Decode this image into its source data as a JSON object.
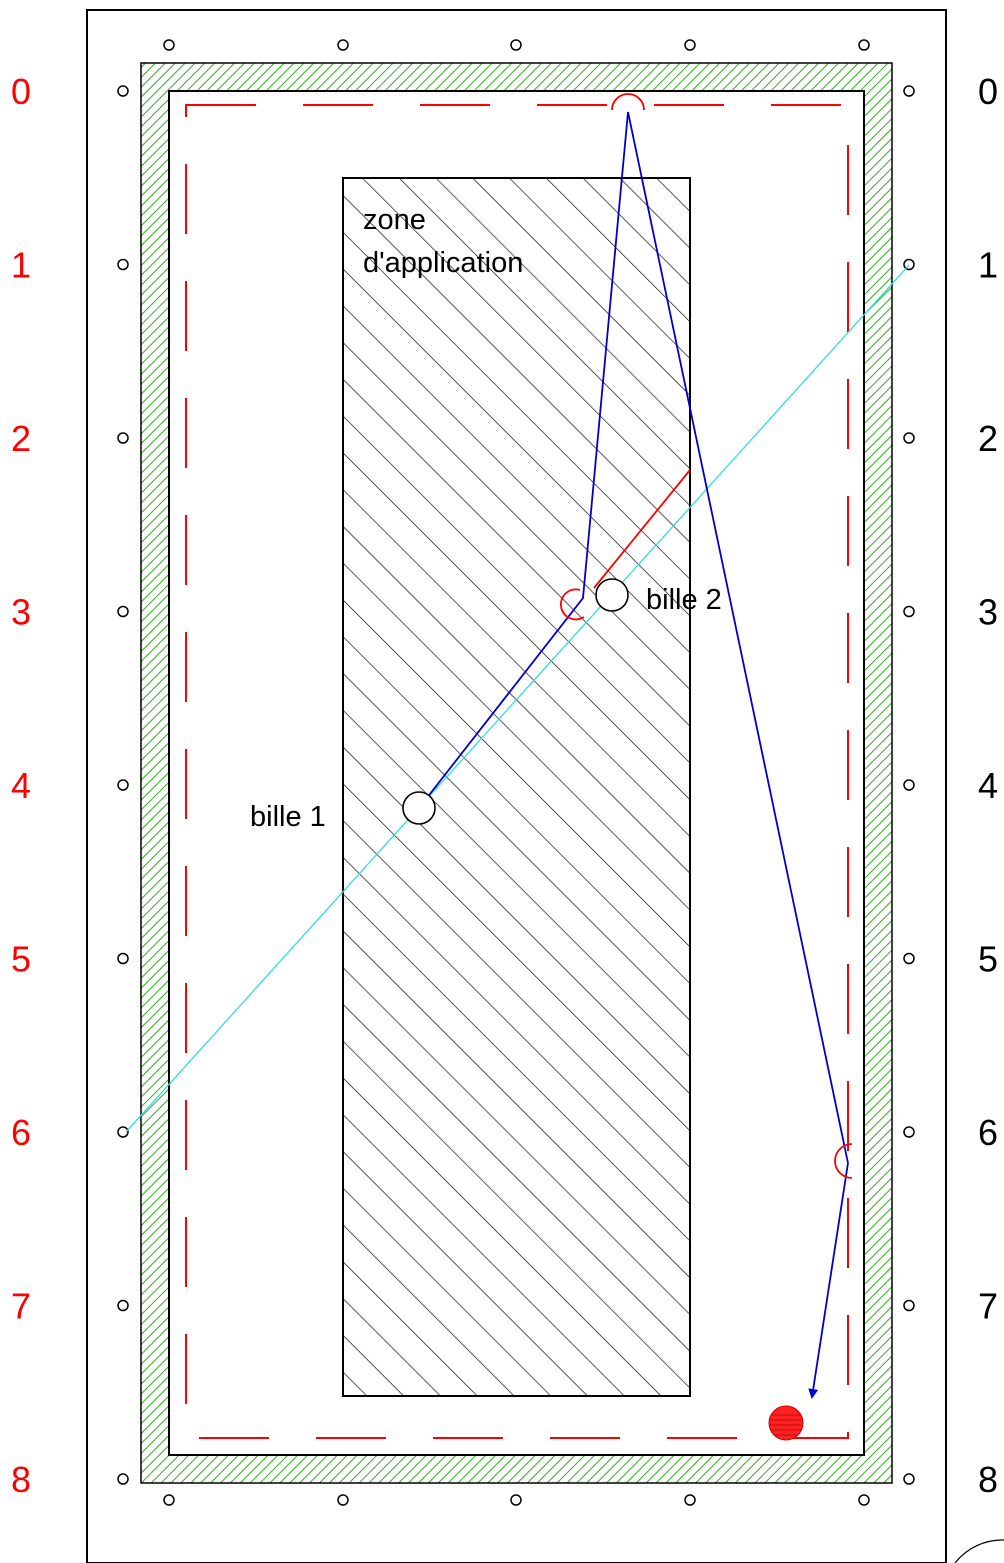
{
  "diagram": {
    "left_row_labels": [
      "0",
      "1",
      "2",
      "3",
      "4",
      "5",
      "6",
      "7",
      "8"
    ],
    "right_row_labels": [
      "0",
      "1",
      "2",
      "3",
      "4",
      "5",
      "6",
      "7",
      "8"
    ],
    "zone_label_line1": "zone",
    "zone_label_line2": "d'application",
    "ball1_label": "bille 1",
    "ball2_label": "bille 2",
    "colors": {
      "left_labels": "#ff0000",
      "right_labels": "#000000",
      "cushion": "#33aa22",
      "dashed_line": "#ff0000",
      "cue_path": "#0000cc",
      "aim_line": "#33dddd",
      "ball2_path": "#ff0000",
      "red_ball": "#ff2222"
    }
  }
}
